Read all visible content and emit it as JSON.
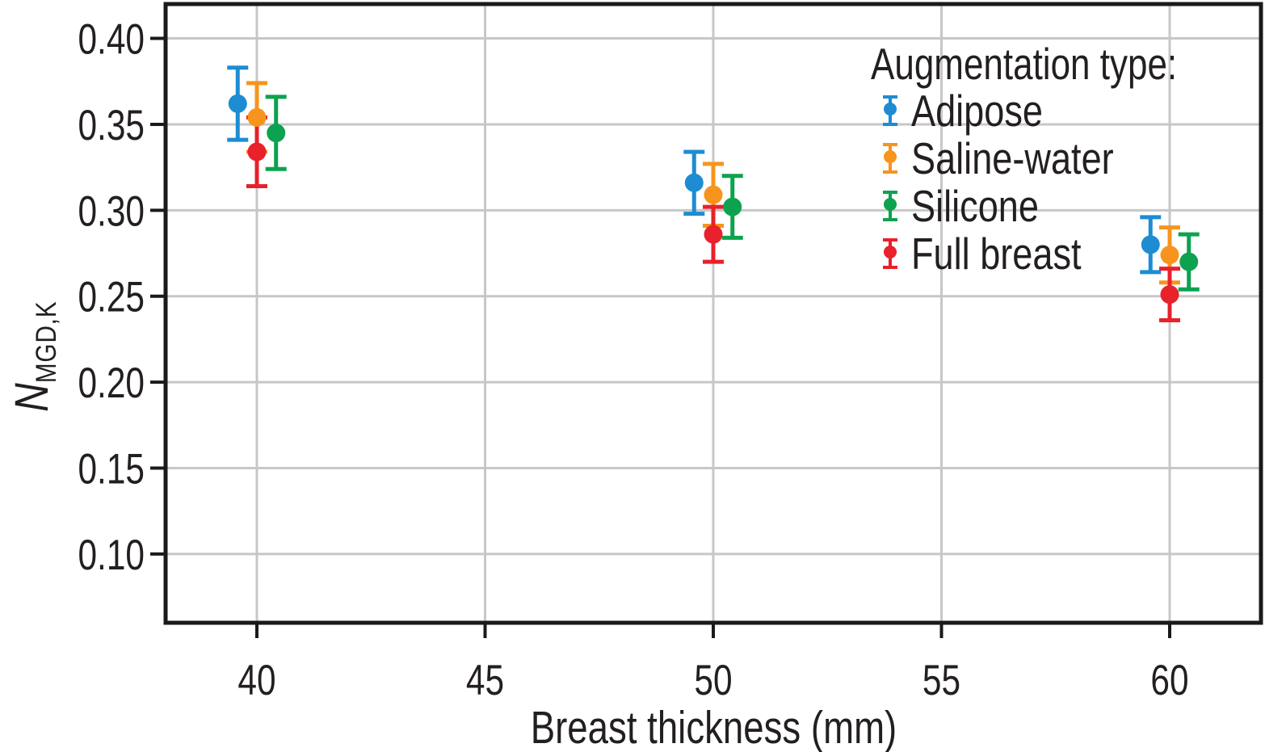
{
  "figure": {
    "background": "#ffffff",
    "axis_color": "#1a1a1a",
    "grid_color": "#c7c7c7",
    "text_color": "#231f20",
    "xlabel": "Breast thickness (mm)",
    "ylabel_main": "N",
    "ylabel_sub": "MGD,K"
  },
  "legend": {
    "title": "Augmentation type:",
    "position": "upper-right"
  },
  "chart_data": {
    "type": "scatter",
    "title": "",
    "xlabel": "Breast thickness (mm)",
    "ylabel": "N_MGD,K",
    "grid": true,
    "legend_position": "upper right",
    "marker": "circle-with-error-bars",
    "x": [
      40,
      50,
      60
    ],
    "xlim": [
      38,
      62
    ],
    "ylim": [
      0.06,
      0.42
    ],
    "xticks": [
      "40",
      "45",
      "50",
      "55",
      "60"
    ],
    "yticks": [
      "0.10",
      "0.15",
      "0.20",
      "0.25",
      "0.30",
      "0.35",
      "0.40"
    ],
    "series": [
      {
        "name": "Adipose",
        "color": "#1d8cd3",
        "x_offset": -0.42,
        "values": [
          0.362,
          0.316,
          0.28
        ],
        "errors": [
          0.021,
          0.018,
          0.016
        ]
      },
      {
        "name": "Saline-water",
        "color": "#f7941e",
        "x_offset": 0,
        "values": [
          0.354,
          0.309,
          0.274
        ],
        "errors": [
          0.02,
          0.018,
          0.016
        ]
      },
      {
        "name": "Silicone",
        "color": "#0da24f",
        "x_offset": 0.42,
        "values": [
          0.345,
          0.302,
          0.27
        ],
        "errors": [
          0.021,
          0.018,
          0.016
        ]
      },
      {
        "name": "Full breast",
        "color": "#e8212b",
        "x_offset": 0,
        "values": [
          0.334,
          0.286,
          0.251
        ],
        "errors": [
          0.02,
          0.016,
          0.015
        ]
      }
    ]
  }
}
